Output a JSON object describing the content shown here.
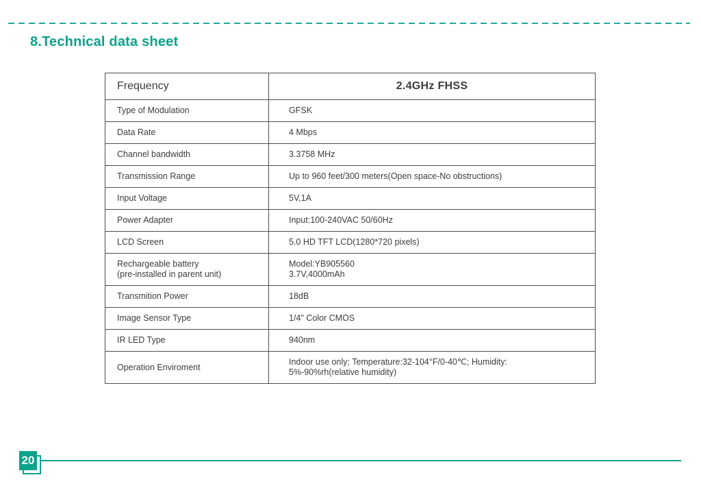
{
  "page": {
    "title": "8.Technical data sheet",
    "page_number": "20"
  },
  "colors": {
    "accent_teal": "#0CA38B",
    "dash_teal": "#21A89D",
    "table_border": "#4D4D4D",
    "body_text": "#3C3C3C"
  },
  "table": {
    "header": {
      "label": "Frequency",
      "value": "2.4GHz FHSS"
    },
    "rows": [
      {
        "label": "Type of Modulation",
        "value": "GFSK"
      },
      {
        "label": "Data Rate",
        "value": "4 Mbps"
      },
      {
        "label": "Channel bandwidth",
        "value": "3.3758 MHz"
      },
      {
        "label": "Transmission Range",
        "value": "Up to 960 feet/300 meters(Open space-No obstructions)"
      },
      {
        "label": "Input Voltage",
        "value": "5V,1A"
      },
      {
        "label": "Power Adapter",
        "value": "Input:100-240VAC 50/60Hz"
      },
      {
        "label": "LCD Screen",
        "value": "5.0 HD TFT LCD(1280*720 pixels)"
      },
      {
        "label": "Rechargeable battery\n(pre-installed in parent unit)",
        "value": "Model:YB905560\n3.7V,4000mAh"
      },
      {
        "label": "Transmition Power",
        "value": "18dB"
      },
      {
        "label": "Image Sensor Type",
        "value": "1/4\" Color CMOS"
      },
      {
        "label": "IR LED Type",
        "value": "940nm"
      },
      {
        "label": "Operation Enviroment",
        "value": "Indoor use only; Temperature:32-104°F/0-40℃; Humidity:\n5%-90%rh(relative humidity)"
      }
    ]
  }
}
